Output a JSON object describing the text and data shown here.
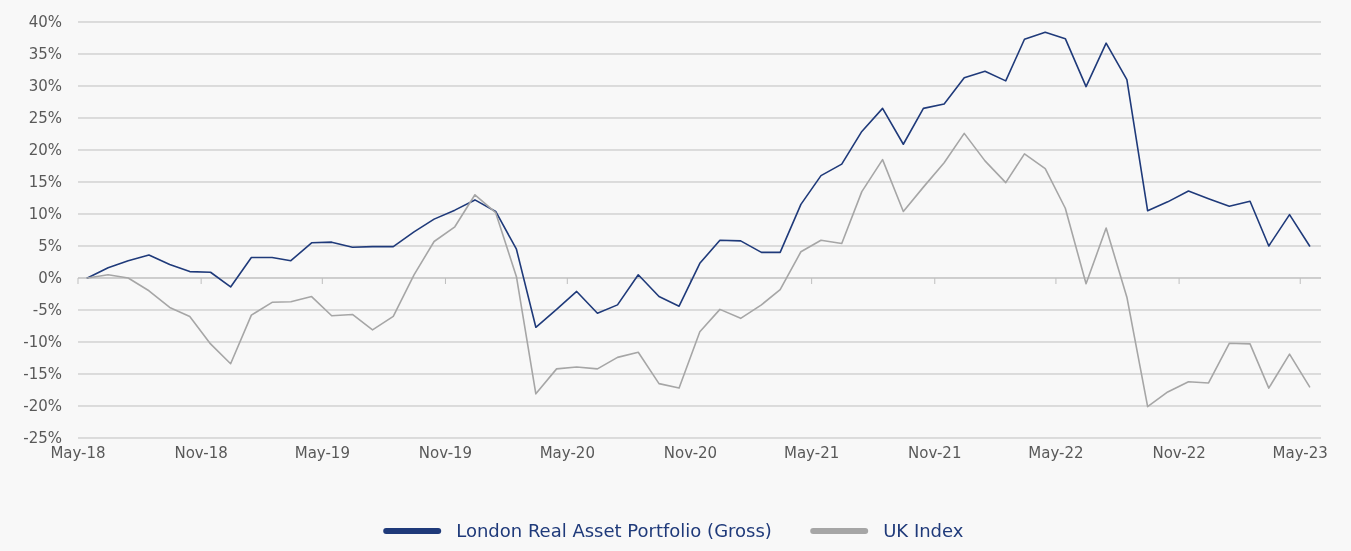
{
  "chart_data": {
    "type": "line",
    "x": [
      "2018-05-15",
      "2018-06-15",
      "2018-07-15",
      "2018-08-15",
      "2018-09-15",
      "2018-10-15",
      "2018-11-15",
      "2018-12-15",
      "2019-01-15",
      "2019-02-15",
      "2019-03-15",
      "2019-04-15",
      "2019-05-15",
      "2019-06-15",
      "2019-07-15",
      "2019-08-15",
      "2019-09-15",
      "2019-10-15",
      "2019-11-15",
      "2019-12-15",
      "2020-01-15",
      "2020-02-15",
      "2020-03-15",
      "2020-04-15",
      "2020-05-15",
      "2020-06-15",
      "2020-07-15",
      "2020-08-15",
      "2020-09-15",
      "2020-10-15",
      "2020-11-15",
      "2020-12-15",
      "2021-01-15",
      "2021-02-15",
      "2021-03-15",
      "2021-04-15",
      "2021-05-15",
      "2021-06-15",
      "2021-07-15",
      "2021-08-15",
      "2021-09-15",
      "2021-10-15",
      "2021-11-15",
      "2021-12-15",
      "2022-01-15",
      "2022-02-15",
      "2022-03-15",
      "2022-04-15",
      "2022-05-15",
      "2022-06-15",
      "2022-07-15",
      "2022-08-15",
      "2022-09-15",
      "2022-10-15",
      "2022-11-15",
      "2022-12-15",
      "2023-01-15",
      "2023-02-15",
      "2023-03-15",
      "2023-04-15",
      "2023-05-15"
    ],
    "series": [
      {
        "name": "London Real Asset Portfolio (Gross)",
        "color": "#1f3a7a",
        "values": [
          0,
          1.6,
          2.7,
          3.6,
          2.1,
          1.0,
          0.9,
          -1.4,
          3.2,
          3.2,
          2.7,
          5.5,
          5.6,
          4.8,
          4.9,
          4.9,
          7.2,
          9.2,
          10.6,
          12.2,
          10.4,
          4.5,
          -7.7,
          -4.9,
          -2.1,
          -5.5,
          -4.2,
          0.5,
          -2.9,
          -4.4,
          2.3,
          5.9,
          5.8,
          4.0,
          4.0,
          11.5,
          16.0,
          17.8,
          22.9,
          26.5,
          20.9,
          26.5,
          27.2,
          31.3,
          32.3,
          30.8,
          37.3,
          38.4,
          37.4,
          29.9,
          36.7,
          31.0,
          10.5,
          11.9,
          13.6,
          12.4,
          11.2,
          12.0,
          5.0,
          9.9,
          5.0
        ]
      },
      {
        "name": "UK Index",
        "color": "#a6a6a6",
        "values": [
          0,
          0.5,
          0,
          -2.0,
          -4.6,
          -6.0,
          -10.3,
          -13.4,
          -5.8,
          -3.8,
          -3.7,
          -2.9,
          -5.9,
          -5.7,
          -8.1,
          -6.0,
          0.5,
          5.7,
          8.0,
          13.0,
          10.2,
          0.2,
          -18.1,
          -14.2,
          -13.9,
          -14.2,
          -12.4,
          -11.6,
          -16.5,
          -17.2,
          -8.4,
          -4.9,
          -6.3,
          -4.2,
          -1.8,
          4.1,
          5.9,
          5.4,
          13.5,
          18.5,
          10.4,
          14.2,
          18.0,
          22.6,
          18.3,
          14.9,
          19.4,
          17.1,
          10.9,
          -0.9,
          7.8,
          -3.0,
          -20.1,
          -17.8,
          -16.2,
          -16.4,
          -10.2,
          -10.3,
          -17.2,
          -11.9,
          -17.0
        ]
      }
    ],
    "xlim": [
      "2018-05-01",
      "2023-06-01"
    ],
    "xticks": [
      {
        "value": "2018-05-01",
        "label": "May-18"
      },
      {
        "value": "2018-11-01",
        "label": "Nov-18"
      },
      {
        "value": "2019-05-01",
        "label": "May-19"
      },
      {
        "value": "2019-11-01",
        "label": "Nov-19"
      },
      {
        "value": "2020-05-01",
        "label": "May-20"
      },
      {
        "value": "2020-11-01",
        "label": "Nov-20"
      },
      {
        "value": "2021-05-01",
        "label": "May-21"
      },
      {
        "value": "2021-11-01",
        "label": "Nov-21"
      },
      {
        "value": "2022-05-01",
        "label": "May-22"
      },
      {
        "value": "2022-11-01",
        "label": "Nov-22"
      },
      {
        "value": "2023-05-01",
        "label": "May-23"
      }
    ],
    "ylim": [
      -25,
      40
    ],
    "yticks": [
      {
        "value": -25,
        "label": "-25%"
      },
      {
        "value": -20,
        "label": "-20%"
      },
      {
        "value": -15,
        "label": "-15%"
      },
      {
        "value": -10,
        "label": "-10%"
      },
      {
        "value": -5,
        "label": "-5%"
      },
      {
        "value": 0,
        "label": "0%"
      },
      {
        "value": 5,
        "label": "5%"
      },
      {
        "value": 10,
        "label": "10%"
      },
      {
        "value": 15,
        "label": "15%"
      },
      {
        "value": 20,
        "label": "20%"
      },
      {
        "value": 25,
        "label": "25%"
      },
      {
        "value": 30,
        "label": "30%"
      },
      {
        "value": 35,
        "label": "35%"
      },
      {
        "value": 40,
        "label": "40%"
      }
    ],
    "grid": "y",
    "legend": "bottom",
    "marker": "none",
    "line_style": "solid"
  }
}
